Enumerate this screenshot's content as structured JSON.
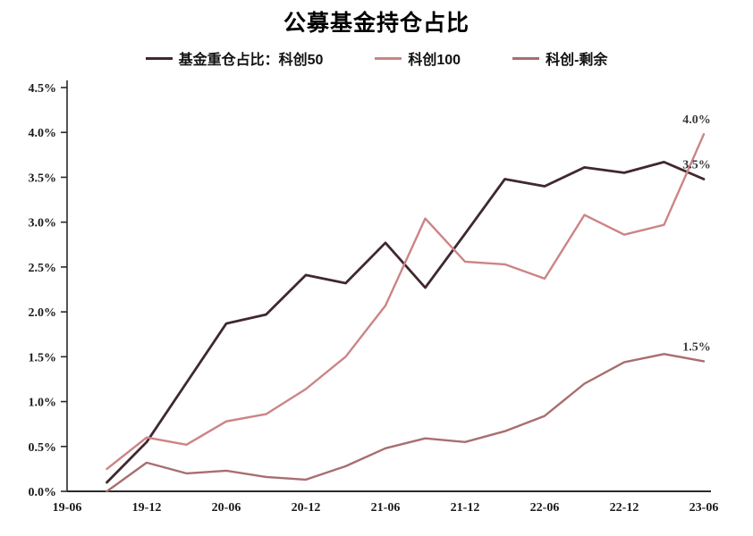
{
  "chart": {
    "title": "公募基金持仓占比"
  },
  "chart_data": {
    "type": "line",
    "title": "公募基金持仓占比",
    "legend_position": "top",
    "grid": false,
    "ylim": [
      0,
      4.5
    ],
    "ytick_step": 0.5,
    "y_tick_labels": [
      "0.0%",
      "0.5%",
      "1.0%",
      "1.5%",
      "2.0%",
      "2.5%",
      "3.0%",
      "3.5%",
      "4.0%",
      "4.5%"
    ],
    "x_tick_labels": [
      "19-06",
      "19-12",
      "20-06",
      "20-12",
      "21-06",
      "21-12",
      "22-06",
      "22-12",
      "23-06"
    ],
    "categories": [
      "19-09",
      "19-12",
      "20-03",
      "20-06",
      "20-09",
      "20-12",
      "21-03",
      "21-06",
      "21-09",
      "21-12",
      "22-03",
      "22-06",
      "22-09",
      "22-12",
      "23-03",
      "23-06"
    ],
    "series": [
      {
        "name": "基金重仓占比：科创50",
        "color": "#40282e",
        "stroke_width": 2.8,
        "values": [
          0.1,
          0.55,
          1.21,
          1.87,
          1.97,
          2.41,
          2.32,
          2.77,
          2.27,
          2.87,
          3.48,
          3.4,
          3.61,
          3.55,
          3.67,
          3.48
        ]
      },
      {
        "name": "科创100",
        "color": "#cc8485",
        "stroke_width": 2.4,
        "values": [
          0.25,
          0.6,
          0.52,
          0.78,
          0.86,
          1.14,
          1.5,
          2.07,
          3.04,
          2.56,
          2.53,
          2.37,
          3.08,
          2.86,
          2.97,
          3.98
        ]
      },
      {
        "name": "科创-剩余",
        "color": "#a86e70",
        "stroke_width": 2.4,
        "values": [
          0.0,
          0.32,
          0.2,
          0.23,
          0.16,
          0.13,
          0.28,
          0.48,
          0.59,
          0.55,
          0.67,
          0.84,
          1.2,
          1.44,
          1.53,
          1.45
        ]
      }
    ],
    "annotations": [
      {
        "text": "4.0%",
        "series_index": 1
      },
      {
        "text": "3.5%",
        "series_index": 0
      },
      {
        "text": "1.5%",
        "series_index": 2
      }
    ]
  }
}
